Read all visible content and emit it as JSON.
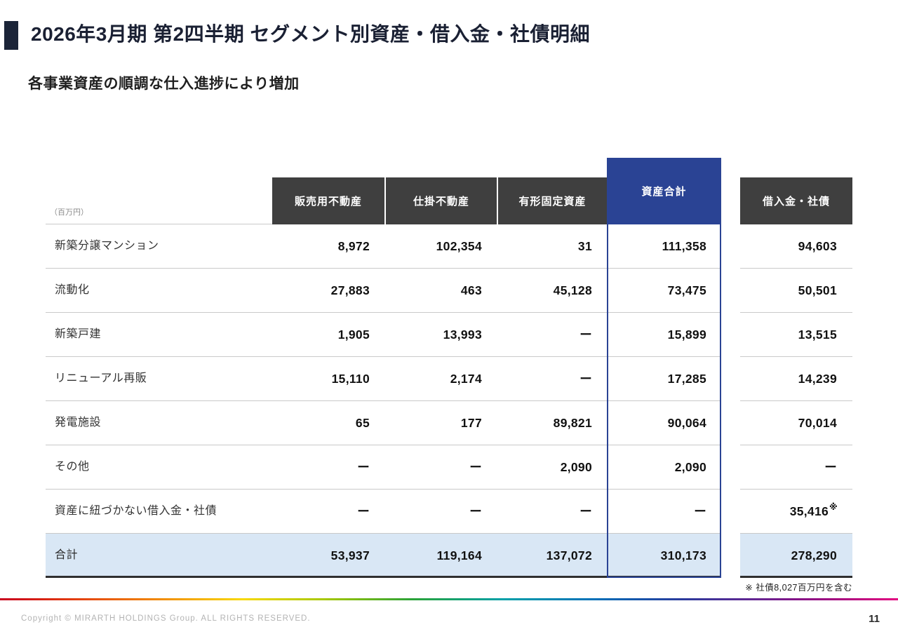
{
  "slide": {
    "title": "2026年3月期 第2四半期 セグメント別資産・借入金・社債明細",
    "subtitle": "各事業資産の順調な仕入進捗により増加",
    "footnote": "※ 社債8,027百万円を含む",
    "footer": {
      "copyright": "Copyright © MIRARTH HOLDINGS Group. ALL RIGHTS RESERVED.",
      "page": "11"
    }
  },
  "table": {
    "unit_label": "（百万円）",
    "columns": [
      "販売用不動産",
      "仕掛不動産",
      "有形固定資産",
      "資産合計",
      "借入金・社債"
    ],
    "highlight_column": "資産合計",
    "rows": [
      {
        "label": "新築分譲マンション",
        "values": [
          "8,972",
          "102,354",
          "31",
          "111,358",
          "94,603"
        ]
      },
      {
        "label": "流動化",
        "values": [
          "27,883",
          "463",
          "45,128",
          "73,475",
          "50,501"
        ]
      },
      {
        "label": "新築戸建",
        "values": [
          "1,905",
          "13,993",
          "ー",
          "15,899",
          "13,515"
        ]
      },
      {
        "label": "リニューアル再販",
        "values": [
          "15,110",
          "2,174",
          "ー",
          "17,285",
          "14,239"
        ]
      },
      {
        "label": "発電施設",
        "values": [
          "65",
          "177",
          "89,821",
          "90,064",
          "70,014"
        ]
      },
      {
        "label": "その他",
        "values": [
          "ー",
          "ー",
          "2,090",
          "2,090",
          "ー"
        ]
      },
      {
        "label": "資産に紐づかない借入金・社債",
        "values": [
          "ー",
          "ー",
          "ー",
          "ー",
          "35,416"
        ],
        "note_marker": "※"
      },
      {
        "label": "合計",
        "values": [
          "53,937",
          "119,164",
          "137,072",
          "310,173",
          "278,290"
        ],
        "is_total": true
      }
    ],
    "colors": {
      "header_bg": "#3f3f3f",
      "highlight_bg": "#2a4394",
      "total_row_bg": "#d9e7f5",
      "title_marker": "#1b2438",
      "row_border": "#c9c9c9"
    }
  }
}
